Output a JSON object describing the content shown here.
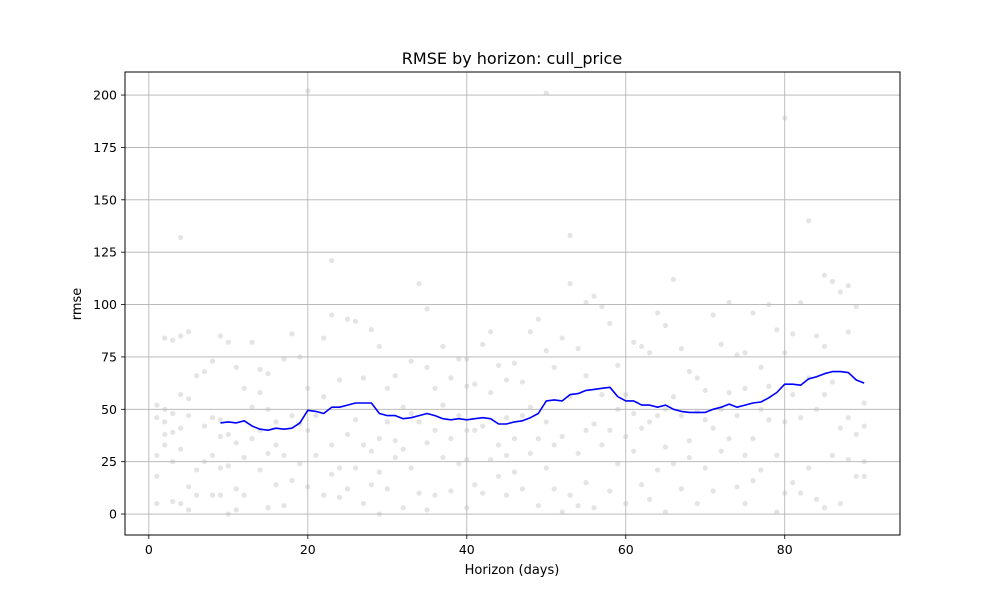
{
  "chart_data": {
    "type": "line",
    "title": "RMSE by horizon: cull_price",
    "xlabel": "Horizon (days)",
    "ylabel": "rmse",
    "xlim": [
      -3,
      94.5
    ],
    "ylim": [
      -10,
      211
    ],
    "xticks": [
      0,
      20,
      40,
      60,
      80
    ],
    "yticks": [
      0,
      25,
      50,
      75,
      100,
      125,
      150,
      175,
      200
    ],
    "grid": true,
    "colors": {
      "line": "#0000ff",
      "points": "#bbbbbb",
      "grid": "#b0b0b0"
    },
    "series": [
      {
        "kind": "line",
        "x": [
          9,
          10,
          11,
          12,
          13,
          14,
          15,
          16,
          17,
          18,
          19,
          20,
          21,
          22,
          23,
          24,
          25,
          26,
          27,
          28,
          29,
          30,
          31,
          32,
          33,
          34,
          35,
          36,
          37,
          38,
          39,
          40,
          41,
          42,
          43,
          44,
          45,
          46,
          47,
          48,
          49,
          50,
          51,
          52,
          53,
          54,
          55,
          56,
          57,
          58,
          59,
          60,
          61,
          62,
          63,
          64,
          65,
          66,
          67,
          68,
          69,
          70,
          71,
          72,
          73,
          74,
          75,
          76,
          77,
          78,
          79,
          80,
          81,
          82,
          83,
          84,
          85,
          86,
          87,
          88,
          89,
          90
        ],
        "y": [
          43.5,
          44,
          43.5,
          44.5,
          42,
          40.5,
          40,
          41,
          40.5,
          41,
          43.5,
          49.5,
          49,
          48,
          51,
          51,
          52,
          53,
          53,
          53,
          48,
          47,
          47,
          45.5,
          46,
          47,
          48,
          47,
          45.5,
          45,
          45.5,
          45,
          45.5,
          46,
          45.5,
          43,
          43,
          44,
          44.5,
          46,
          48,
          54,
          54.5,
          54,
          57,
          57.5,
          59,
          59.5,
          60,
          60.5,
          56,
          54,
          54,
          52,
          52,
          51,
          52,
          50,
          49,
          48.5,
          48.5,
          48.5,
          50,
          51,
          52.5,
          51,
          52,
          53,
          53.5,
          55.5,
          58,
          62,
          62,
          61.5,
          64.5,
          65.5,
          67,
          68,
          68,
          67.5,
          64,
          62.5
        ]
      },
      {
        "kind": "scatter",
        "points": [
          [
            1,
            5
          ],
          [
            1,
            18
          ],
          [
            1,
            28
          ],
          [
            1,
            46
          ],
          [
            1,
            52
          ],
          [
            2,
            33
          ],
          [
            2,
            38
          ],
          [
            2,
            44
          ],
          [
            2,
            50
          ],
          [
            2,
            84
          ],
          [
            3,
            6
          ],
          [
            3,
            25
          ],
          [
            3,
            39
          ],
          [
            3,
            48
          ],
          [
            3,
            83
          ],
          [
            4,
            5
          ],
          [
            4,
            31
          ],
          [
            4,
            41
          ],
          [
            4,
            57
          ],
          [
            4,
            85
          ],
          [
            4,
            132
          ],
          [
            5,
            2
          ],
          [
            5,
            13
          ],
          [
            5,
            47
          ],
          [
            5,
            55
          ],
          [
            5,
            87
          ],
          [
            6,
            9
          ],
          [
            6,
            21
          ],
          [
            6,
            66
          ],
          [
            7,
            25
          ],
          [
            7,
            42
          ],
          [
            7,
            68
          ],
          [
            8,
            9
          ],
          [
            8,
            28
          ],
          [
            8,
            46
          ],
          [
            8,
            73
          ],
          [
            9,
            9
          ],
          [
            9,
            22
          ],
          [
            9,
            37
          ],
          [
            9,
            45
          ],
          [
            9,
            85
          ],
          [
            10,
            0
          ],
          [
            10,
            23
          ],
          [
            10,
            38
          ],
          [
            10,
            82
          ],
          [
            11,
            2
          ],
          [
            11,
            12
          ],
          [
            11,
            34
          ],
          [
            11,
            70
          ],
          [
            12,
            9
          ],
          [
            12,
            27
          ],
          [
            12,
            60
          ],
          [
            13,
            36
          ],
          [
            13,
            51
          ],
          [
            13,
            82
          ],
          [
            14,
            21
          ],
          [
            14,
            40
          ],
          [
            14,
            58
          ],
          [
            14,
            69
          ],
          [
            15,
            3
          ],
          [
            15,
            29
          ],
          [
            15,
            50
          ],
          [
            15,
            67
          ],
          [
            16,
            14
          ],
          [
            16,
            33
          ],
          [
            16,
            44
          ],
          [
            17,
            4
          ],
          [
            17,
            28
          ],
          [
            17,
            74
          ],
          [
            18,
            16
          ],
          [
            18,
            47
          ],
          [
            18,
            86
          ],
          [
            19,
            24
          ],
          [
            19,
            43
          ],
          [
            19,
            75
          ],
          [
            20,
            202
          ],
          [
            20,
            13
          ],
          [
            20,
            40
          ],
          [
            20,
            60
          ],
          [
            21,
            28
          ],
          [
            21,
            47
          ],
          [
            22,
            9
          ],
          [
            22,
            56
          ],
          [
            22,
            84
          ],
          [
            23,
            121
          ],
          [
            23,
            19
          ],
          [
            23,
            33
          ],
          [
            23,
            95
          ],
          [
            24,
            8
          ],
          [
            24,
            22
          ],
          [
            24,
            64
          ],
          [
            25,
            12
          ],
          [
            25,
            38
          ],
          [
            25,
            93
          ],
          [
            26,
            22
          ],
          [
            26,
            45
          ],
          [
            26,
            92
          ],
          [
            27,
            5
          ],
          [
            27,
            33
          ],
          [
            27,
            65
          ],
          [
            28,
            14
          ],
          [
            28,
            30
          ],
          [
            28,
            88
          ],
          [
            29,
            0
          ],
          [
            29,
            20
          ],
          [
            29,
            36
          ],
          [
            29,
            80
          ],
          [
            30,
            12
          ],
          [
            30,
            44
          ],
          [
            30,
            60
          ],
          [
            31,
            27
          ],
          [
            31,
            35
          ],
          [
            31,
            66
          ],
          [
            32,
            3
          ],
          [
            32,
            31
          ],
          [
            32,
            51
          ],
          [
            33,
            22
          ],
          [
            33,
            48
          ],
          [
            33,
            73
          ],
          [
            34,
            10
          ],
          [
            34,
            44
          ],
          [
            34,
            110
          ],
          [
            35,
            2
          ],
          [
            35,
            34
          ],
          [
            35,
            70
          ],
          [
            35,
            98
          ],
          [
            36,
            9
          ],
          [
            36,
            40
          ],
          [
            36,
            60
          ],
          [
            37,
            27
          ],
          [
            37,
            52
          ],
          [
            37,
            80
          ],
          [
            38,
            11
          ],
          [
            38,
            36
          ],
          [
            38,
            65
          ],
          [
            39,
            24
          ],
          [
            39,
            47
          ],
          [
            39,
            74
          ],
          [
            40,
            3
          ],
          [
            40,
            26
          ],
          [
            40,
            40
          ],
          [
            40,
            61
          ],
          [
            40,
            74
          ],
          [
            41,
            14
          ],
          [
            41,
            40
          ],
          [
            41,
            62
          ],
          [
            42,
            10
          ],
          [
            42,
            42
          ],
          [
            42,
            81
          ],
          [
            43,
            26
          ],
          [
            43,
            58
          ],
          [
            43,
            87
          ],
          [
            44,
            18
          ],
          [
            44,
            33
          ],
          [
            44,
            71
          ],
          [
            45,
            9
          ],
          [
            45,
            28
          ],
          [
            45,
            46
          ],
          [
            45,
            64
          ],
          [
            46,
            20
          ],
          [
            46,
            36
          ],
          [
            46,
            72
          ],
          [
            47,
            12
          ],
          [
            47,
            47
          ],
          [
            47,
            63
          ],
          [
            48,
            29
          ],
          [
            48,
            51
          ],
          [
            48,
            87
          ],
          [
            49,
            4
          ],
          [
            49,
            36
          ],
          [
            49,
            93
          ],
          [
            50,
            201
          ],
          [
            50,
            22
          ],
          [
            50,
            44
          ],
          [
            50,
            78
          ],
          [
            51,
            12
          ],
          [
            51,
            33
          ],
          [
            51,
            70
          ],
          [
            52,
            1
          ],
          [
            52,
            37
          ],
          [
            52,
            84
          ],
          [
            53,
            133
          ],
          [
            53,
            9
          ],
          [
            53,
            56
          ],
          [
            53,
            110
          ],
          [
            54,
            4
          ],
          [
            54,
            29
          ],
          [
            54,
            79
          ],
          [
            55,
            15
          ],
          [
            55,
            40
          ],
          [
            55,
            66
          ],
          [
            55,
            101
          ],
          [
            56,
            3
          ],
          [
            56,
            43
          ],
          [
            56,
            104
          ],
          [
            57,
            33
          ],
          [
            57,
            57
          ],
          [
            57,
            99
          ],
          [
            58,
            11
          ],
          [
            58,
            40
          ],
          [
            58,
            91
          ],
          [
            59,
            24
          ],
          [
            59,
            50
          ],
          [
            59,
            71
          ],
          [
            60,
            5
          ],
          [
            60,
            37
          ],
          [
            60,
            57
          ],
          [
            61,
            30
          ],
          [
            61,
            48
          ],
          [
            61,
            82
          ],
          [
            62,
            14
          ],
          [
            62,
            41
          ],
          [
            62,
            80
          ],
          [
            63,
            7
          ],
          [
            63,
            44
          ],
          [
            63,
            77
          ],
          [
            64,
            21
          ],
          [
            64,
            47
          ],
          [
            64,
            96
          ],
          [
            65,
            1
          ],
          [
            65,
            32
          ],
          [
            65,
            50
          ],
          [
            65,
            90
          ],
          [
            66,
            24
          ],
          [
            66,
            56
          ],
          [
            66,
            112
          ],
          [
            67,
            12
          ],
          [
            67,
            47
          ],
          [
            67,
            79
          ],
          [
            68,
            27
          ],
          [
            68,
            35
          ],
          [
            68,
            68
          ],
          [
            69,
            5
          ],
          [
            69,
            49
          ],
          [
            69,
            65
          ],
          [
            70,
            22
          ],
          [
            70,
            45
          ],
          [
            70,
            59
          ],
          [
            71,
            11
          ],
          [
            71,
            41
          ],
          [
            71,
            95
          ],
          [
            72,
            30
          ],
          [
            72,
            50
          ],
          [
            72,
            81
          ],
          [
            73,
            36
          ],
          [
            73,
            58
          ],
          [
            73,
            101
          ],
          [
            74,
            13
          ],
          [
            74,
            47
          ],
          [
            74,
            76
          ],
          [
            75,
            5
          ],
          [
            75,
            28
          ],
          [
            75,
            60
          ],
          [
            75,
            77
          ],
          [
            76,
            16
          ],
          [
            76,
            36
          ],
          [
            76,
            96
          ],
          [
            77,
            21
          ],
          [
            77,
            50
          ],
          [
            77,
            70
          ],
          [
            78,
            45
          ],
          [
            78,
            61
          ],
          [
            78,
            100
          ],
          [
            79,
            1
          ],
          [
            79,
            28
          ],
          [
            79,
            88
          ],
          [
            80,
            189
          ],
          [
            80,
            10
          ],
          [
            80,
            44
          ],
          [
            80,
            77
          ],
          [
            81,
            15
          ],
          [
            81,
            57
          ],
          [
            81,
            86
          ],
          [
            82,
            101
          ],
          [
            82,
            10
          ],
          [
            82,
            46
          ],
          [
            83,
            140
          ],
          [
            83,
            22
          ],
          [
            83,
            65
          ],
          [
            84,
            7
          ],
          [
            84,
            50
          ],
          [
            84,
            85
          ],
          [
            85,
            114
          ],
          [
            85,
            3
          ],
          [
            85,
            57
          ],
          [
            85,
            80
          ],
          [
            86,
            28
          ],
          [
            86,
            63
          ],
          [
            86,
            111
          ],
          [
            87,
            5
          ],
          [
            87,
            41
          ],
          [
            87,
            106
          ],
          [
            88,
            26
          ],
          [
            88,
            46
          ],
          [
            88,
            87
          ],
          [
            88,
            109
          ],
          [
            89,
            18
          ],
          [
            89,
            38
          ],
          [
            89,
            99
          ],
          [
            90,
            18
          ],
          [
            90,
            25
          ],
          [
            90,
            42
          ],
          [
            90,
            53
          ]
        ]
      }
    ]
  }
}
